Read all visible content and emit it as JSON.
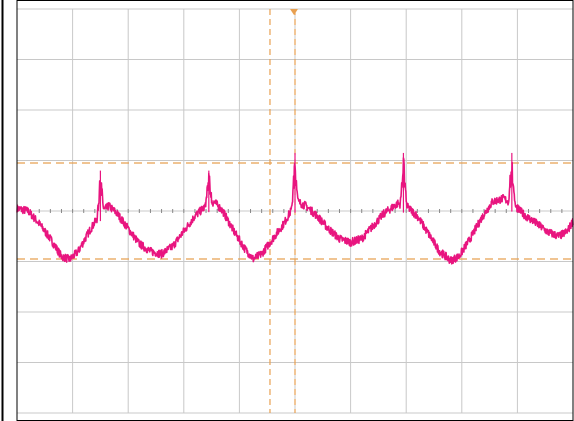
{
  "colors": {
    "background": "#ffffff",
    "frame": "#000000",
    "grid": "#c8c8c8",
    "trace": "#e8157f",
    "cursor": "#e8a050",
    "trigger_marker": "#e8a050"
  },
  "chart_data": {
    "type": "line",
    "title": "",
    "xlabel": "",
    "ylabel": "",
    "grid": true,
    "divisions": {
      "x": 10,
      "y": 8
    },
    "xlim": [
      -5,
      5
    ],
    "ylim": [
      -4,
      4
    ],
    "trigger_x": 0,
    "cursors": {
      "vertical": [
        -0.45
      ],
      "horizontal": [
        0.95,
        -0.95
      ]
    },
    "series": [
      {
        "kind": "waveform",
        "points": [
          [
            -5.0,
            0.05
          ],
          [
            -4.8,
            0.0
          ],
          [
            -4.6,
            -0.25
          ],
          [
            -4.4,
            -0.55
          ],
          [
            -4.2,
            -0.9
          ],
          [
            -4.05,
            -0.96
          ],
          [
            -3.9,
            -0.8
          ],
          [
            -3.7,
            -0.4
          ],
          [
            -3.5,
            -0.05
          ],
          [
            -3.35,
            0.1
          ],
          [
            -3.2,
            -0.05
          ],
          [
            -3.0,
            -0.35
          ],
          [
            -2.8,
            -0.65
          ],
          [
            -2.6,
            -0.8
          ],
          [
            -2.4,
            -0.85
          ],
          [
            -2.2,
            -0.7
          ],
          [
            -2.0,
            -0.4
          ],
          [
            -1.8,
            -0.1
          ],
          [
            -1.6,
            0.1
          ],
          [
            -1.45,
            0.18
          ],
          [
            -1.3,
            0.0
          ],
          [
            -1.1,
            -0.4
          ],
          [
            -0.9,
            -0.75
          ],
          [
            -0.75,
            -0.95
          ],
          [
            -0.6,
            -0.85
          ],
          [
            -0.4,
            -0.55
          ],
          [
            -0.2,
            -0.25
          ],
          [
            -0.05,
            0.05
          ],
          [
            0.05,
            0.18
          ],
          [
            0.2,
            0.1
          ],
          [
            0.4,
            -0.1
          ],
          [
            0.6,
            -0.35
          ],
          [
            0.8,
            -0.55
          ],
          [
            1.0,
            -0.62
          ],
          [
            1.2,
            -0.55
          ],
          [
            1.4,
            -0.3
          ],
          [
            1.6,
            -0.05
          ],
          [
            1.85,
            0.15
          ],
          [
            2.0,
            0.1
          ],
          [
            2.2,
            -0.1
          ],
          [
            2.4,
            -0.45
          ],
          [
            2.6,
            -0.8
          ],
          [
            2.8,
            -0.98
          ],
          [
            2.95,
            -0.9
          ],
          [
            3.15,
            -0.55
          ],
          [
            3.35,
            -0.15
          ],
          [
            3.55,
            0.18
          ],
          [
            3.75,
            0.25
          ],
          [
            3.95,
            0.1
          ],
          [
            4.15,
            -0.1
          ],
          [
            4.35,
            -0.25
          ],
          [
            4.55,
            -0.42
          ],
          [
            4.75,
            -0.5
          ],
          [
            4.9,
            -0.4
          ],
          [
            5.0,
            -0.2
          ]
        ],
        "spikes": [
          {
            "x": -3.5,
            "peak": 0.8
          },
          {
            "x": -1.55,
            "peak": 0.8
          },
          {
            "x": 0.0,
            "peak": 1.15
          },
          {
            "x": 1.95,
            "peak": 1.15
          },
          {
            "x": 3.9,
            "peak": 1.15
          }
        ]
      }
    ]
  }
}
